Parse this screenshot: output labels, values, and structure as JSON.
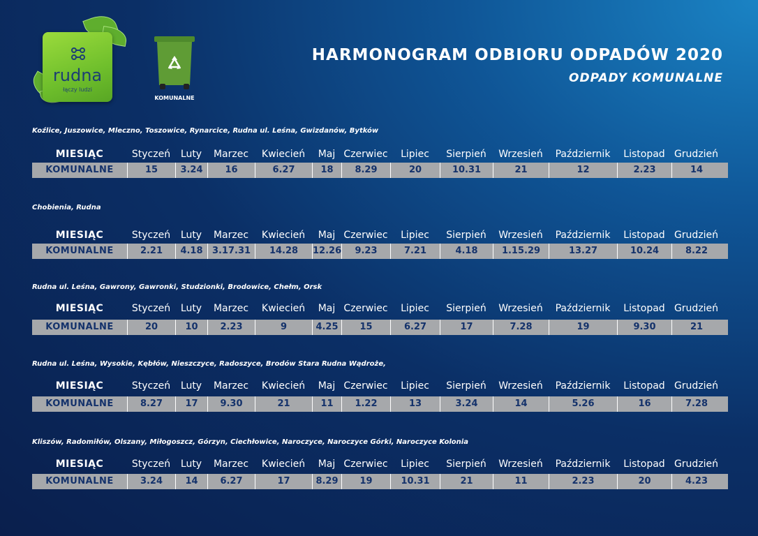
{
  "logo": {
    "name": "rudna",
    "tagline": "łączy ludzi"
  },
  "bin": {
    "label": "KOMUNALNE",
    "icon": "recycle-icon",
    "color": "#5f9c35"
  },
  "header": {
    "title": "HARMONOGRAM ODBIORU ODPADÓW 2020",
    "subtitle": "ODPADY KOMUNALNE"
  },
  "colors": {
    "row_bg": "#a6a8ab",
    "value_text": "#14326b"
  },
  "sections": [
    {
      "label": "Koźlice, Juszowice, Mleczno, Toszowice, Rynarcice, Rudna ul. Leśna, Gwizdanów,  Bytków",
      "header": [
        "MIESIĄC",
        "Styczeń",
        "Luty",
        "Marzec",
        "Kwiecień",
        "Maj",
        "Czerwiec",
        "Lipiec",
        "Sierpień",
        "Wrzesień",
        "Październik",
        "Listopad",
        "Grudzień"
      ],
      "values": [
        "KOMUNALNE",
        "15",
        "3.24",
        "16",
        "6.27",
        "18",
        "8.29",
        "20",
        "10.31",
        "21",
        "12",
        "2.23",
        "14"
      ]
    },
    {
      "label": "Chobienia, Rudna",
      "header": [
        "MIESIĄC",
        "Styczeń",
        "Luty",
        "Marzec",
        "Kwiecień",
        "Maj",
        "Czerwiec",
        "Lipiec",
        "Sierpień",
        "Wrzesień",
        "Październik",
        "Listopad",
        "Grudzień"
      ],
      "values": [
        "KOMUNALNE",
        "2.21",
        "4.18",
        "3.17.31",
        "14.28",
        "12.26",
        "9.23",
        "7.21",
        "4.18",
        "1.15.29",
        "13.27",
        "10.24",
        "8.22"
      ]
    },
    {
      "label": "Rudna ul. Leśna, Gawrony, Gawronki, Studzionki, Brodowice, Chełm, Orsk",
      "header": [
        "MIESIĄC",
        "Styczeń",
        "Luty",
        "Marzec",
        "Kwiecień",
        "Maj",
        "Czerwiec",
        "Lipiec",
        "Sierpień",
        "Wrzesień",
        "Październik",
        "Listopad",
        "Grudzień"
      ],
      "values": [
        "KOMUNALNE",
        "20",
        "10",
        "2.23",
        "9",
        "4.25",
        "15",
        "6.27",
        "17",
        "7.28",
        "19",
        "9.30",
        "21"
      ]
    },
    {
      "label": "Rudna ul. Leśna, Wysokie, Kębłów, Nieszczyce, Radoszyce, Brodów Stara Rudna Wądroże,",
      "header": [
        "MIESIĄC",
        "Styczeń",
        "Luty",
        "Marzec",
        "Kwiecień",
        "Maj",
        "Czerwiec",
        "Lipiec",
        "Sierpień",
        "Wrzesień",
        "Październik",
        "Listopad",
        "Grudzień"
      ],
      "values": [
        "KOMUNALNE",
        "8.27",
        "17",
        "9.30",
        "21",
        "11",
        "1.22",
        "13",
        "3.24",
        "14",
        "5.26",
        "16",
        "7.28"
      ]
    },
    {
      "label": "Kliszów, Radomiłów, Olszany, Miłogoszcz, Górzyn, Ciechłowice, Naroczyce, Naroczyce Górki, Naroczyce Kolonia",
      "header": [
        "MIESIĄC",
        "Styczeń",
        "Luty",
        "Marzec",
        "Kwiecień",
        "Maj",
        "Czerwiec",
        "Lipiec",
        "Sierpień",
        "Wrzesień",
        "Październik",
        "Listopad",
        "Grudzień"
      ],
      "values": [
        "KOMUNALNE",
        "3.24",
        "14",
        "6.27",
        "17",
        "8.29",
        "19",
        "10.31",
        "21",
        "11",
        "2.23",
        "20",
        "4.23"
      ]
    }
  ]
}
